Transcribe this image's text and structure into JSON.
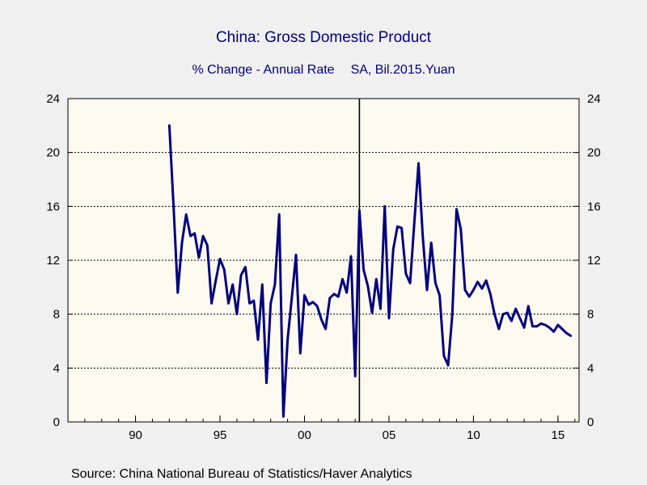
{
  "chart_data": {
    "type": "line",
    "title": "China: Gross Domestic Product",
    "subtitle_left": "% Change - Annual Rate",
    "subtitle_right": "SA, Bil.2015.Yuan",
    "source": "Source:  China National Bureau of Statistics/Haver Analytics",
    "ylim": [
      0,
      24
    ],
    "y_ticks": [
      0,
      4,
      8,
      12,
      16,
      20,
      24
    ],
    "xlim": [
      1986.0,
      2016.25
    ],
    "x_ticks": [
      {
        "value": 1990,
        "label": "90"
      },
      {
        "value": 1995,
        "label": "95"
      },
      {
        "value": 2000,
        "label": "00"
      },
      {
        "value": 2005,
        "label": "05"
      },
      {
        "value": 2010,
        "label": "10"
      },
      {
        "value": 2015,
        "label": "15"
      }
    ],
    "grid": true,
    "vertical_marker_x": 2003.25,
    "colors": {
      "series": "#000080",
      "plot_bg": "#fffaf0",
      "page_bg": "#f0f0f0",
      "axis": "#000000"
    },
    "series": [
      {
        "x": [
          1992.0,
          1992.25,
          1992.5,
          1992.75,
          1993.0,
          1993.25,
          1993.5,
          1993.75,
          1994.0,
          1994.25,
          1994.5,
          1994.75,
          1995.0,
          1995.25,
          1995.5,
          1995.75,
          1996.0,
          1996.25,
          1996.5,
          1996.75,
          1997.0,
          1997.25,
          1997.5,
          1997.75,
          1998.0,
          1998.25,
          1998.5,
          1998.75,
          1999.0,
          1999.25,
          1999.5,
          1999.75,
          2000.0,
          2000.25,
          2000.5,
          2000.75,
          2001.0,
          2001.25,
          2001.5,
          2001.75,
          2002.0,
          2002.25,
          2002.5,
          2002.75,
          2003.0,
          2003.25,
          2003.5,
          2003.75,
          2004.0,
          2004.25,
          2004.5,
          2004.75,
          2005.0,
          2005.25,
          2005.5,
          2005.75,
          2006.0,
          2006.25,
          2006.5,
          2006.75,
          2007.0,
          2007.25,
          2007.5,
          2007.75,
          2008.0,
          2008.25,
          2008.5,
          2008.75,
          2009.0,
          2009.25,
          2009.5,
          2009.75,
          2010.0,
          2010.25,
          2010.5,
          2010.75,
          2011.0,
          2011.25,
          2011.5,
          2011.75,
          2012.0,
          2012.25,
          2012.5,
          2012.75,
          2013.0,
          2013.25,
          2013.5,
          2013.75,
          2014.0,
          2014.25,
          2014.5,
          2014.75,
          2015.0,
          2015.25,
          2015.5,
          2015.75
        ],
        "values": [
          22.0,
          16.0,
          9.6,
          13.3,
          15.4,
          13.8,
          14.0,
          12.2,
          13.8,
          13.1,
          8.8,
          10.5,
          12.1,
          11.3,
          8.8,
          10.2,
          8.0,
          10.9,
          11.5,
          8.8,
          9.0,
          6.1,
          10.2,
          2.9,
          8.8,
          10.2,
          15.4,
          0.4,
          6.1,
          9.2,
          12.4,
          5.1,
          9.4,
          8.7,
          8.9,
          8.6,
          7.6,
          6.9,
          9.2,
          9.5,
          9.3,
          10.6,
          9.6,
          12.3,
          3.4,
          15.7,
          11.3,
          10.1,
          8.1,
          10.6,
          8.4,
          16.0,
          7.7,
          12.8,
          14.5,
          14.4,
          11.0,
          10.3,
          14.8,
          19.2,
          13.8,
          9.8,
          13.3,
          10.3,
          9.4,
          4.9,
          4.2,
          8.0,
          15.8,
          14.3,
          9.8,
          9.3,
          9.8,
          10.4,
          9.9,
          10.5,
          9.5,
          8.0,
          6.9,
          8.0,
          8.1,
          7.5,
          8.4,
          7.7,
          7.0,
          8.6,
          7.1,
          7.1,
          7.3,
          7.2,
          7.0,
          6.7,
          7.2,
          6.9,
          6.6,
          6.4
        ]
      }
    ]
  }
}
